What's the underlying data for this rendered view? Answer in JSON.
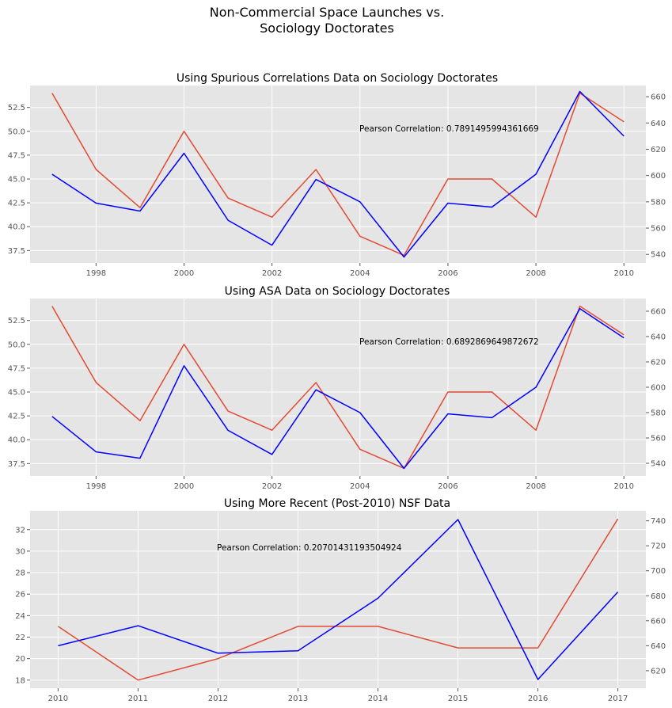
{
  "suptitle": [
    "Non-Commercial Space Launches vs.",
    "Sociology Doctorates"
  ],
  "colors": {
    "left_series": "#e24a33",
    "right_series": "#0000ff",
    "background": "#e5e5e5",
    "grid": "#ffffff"
  },
  "chart_data": [
    {
      "type": "line",
      "title": "Using Spurious Correlations Data on Sociology Doctorates",
      "annotation": "Pearson Correlation: 0.7891495994361669",
      "grid": true,
      "x": [
        1997,
        1998,
        1999,
        2000,
        2001,
        2002,
        2003,
        2004,
        2005,
        2006,
        2007,
        2008,
        2009,
        2010
      ],
      "xlim": [
        1996.5,
        2010.5
      ],
      "xticks": [
        1998,
        2000,
        2002,
        2004,
        2006,
        2008,
        2010
      ],
      "ylim": [
        36.2,
        54.8
      ],
      "yticks": [
        37.5,
        40.0,
        42.5,
        45.0,
        47.5,
        50.0,
        52.5
      ],
      "y2lim": [
        533.5,
        668.5
      ],
      "y2ticks": [
        540,
        560,
        580,
        600,
        620,
        640,
        660
      ],
      "series": [
        {
          "axis": "left",
          "color": "#e24a33",
          "values": [
            54,
            46,
            42,
            50,
            43,
            41,
            46,
            39,
            37,
            45,
            45,
            41,
            54,
            51
          ]
        },
        {
          "axis": "right",
          "color": "#0000ff",
          "values": [
            601,
            579,
            573,
            617,
            566,
            547,
            597,
            580,
            538,
            579,
            576,
            601,
            664,
            630
          ]
        }
      ]
    },
    {
      "type": "line",
      "title": "Using ASA Data on Sociology Doctorates",
      "annotation": "Pearson Correlation: 0.6892869649872672",
      "grid": true,
      "x": [
        1997,
        1998,
        1999,
        2000,
        2001,
        2002,
        2003,
        2004,
        2005,
        2006,
        2007,
        2008,
        2009,
        2010
      ],
      "xlim": [
        1996.5,
        2010.5
      ],
      "xticks": [
        1998,
        2000,
        2002,
        2004,
        2006,
        2008,
        2010
      ],
      "ylim": [
        36.2,
        54.8
      ],
      "yticks": [
        37.5,
        40.0,
        42.5,
        45.0,
        47.5,
        50.0,
        52.5
      ],
      "y2lim": [
        530,
        670
      ],
      "y2ticks": [
        540,
        560,
        580,
        600,
        620,
        640,
        660
      ],
      "series": [
        {
          "axis": "left",
          "color": "#e24a33",
          "values": [
            54,
            46,
            42,
            50,
            43,
            41,
            46,
            39,
            37,
            45,
            45,
            41,
            54,
            51
          ]
        },
        {
          "axis": "right",
          "color": "#0000ff",
          "values": [
            577,
            549,
            544,
            617,
            566,
            547,
            598,
            580,
            536,
            579,
            576,
            600,
            662,
            639
          ]
        }
      ]
    },
    {
      "type": "line",
      "title": "Using More Recent (Post-2010) NSF Data",
      "annotation": "Pearson Correlation: 0.20701431193504924",
      "grid": true,
      "x": [
        2010,
        2011,
        2012,
        2013,
        2014,
        2015,
        2016,
        2017
      ],
      "xlim": [
        2009.65,
        2017.35
      ],
      "xticks": [
        2010,
        2011,
        2012,
        2013,
        2014,
        2015,
        2016,
        2017
      ],
      "ylim": [
        17.25,
        33.75
      ],
      "yticks": [
        18,
        20,
        22,
        24,
        26,
        28,
        30,
        32
      ],
      "y2lim": [
        606,
        748
      ],
      "y2ticks": [
        620,
        640,
        660,
        680,
        700,
        720,
        740
      ],
      "series": [
        {
          "axis": "left",
          "color": "#e24a33",
          "values": [
            23,
            18,
            20,
            23,
            23,
            21,
            21,
            33
          ]
        },
        {
          "axis": "right",
          "color": "#0000ff",
          "values": [
            640,
            656,
            634,
            636,
            678,
            741,
            613,
            683
          ]
        }
      ]
    }
  ]
}
